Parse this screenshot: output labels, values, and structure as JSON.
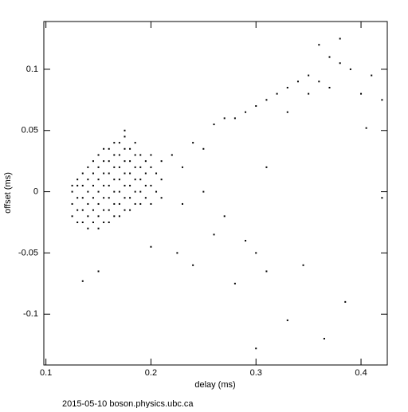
{
  "chart_data": {
    "type": "scatter",
    "xlabel": "delay (ms)",
    "ylabel": "offset (ms)",
    "footer": "2015-05-10  boson.physics.ubc.ca",
    "color": "#000000",
    "xlim": [
      0.098,
      0.425
    ],
    "ylim": [
      -0.1415,
      0.139
    ],
    "xticks": [
      0.1,
      0.2,
      0.3,
      0.4
    ],
    "yticks": [
      -0.1,
      -0.05,
      0,
      0.05,
      0.1
    ],
    "x": [
      0.125,
      0.125,
      0.125,
      0.125,
      0.13,
      0.13,
      0.13,
      0.13,
      0.13,
      0.135,
      0.135,
      0.135,
      0.135,
      0.135,
      0.14,
      0.14,
      0.14,
      0.14,
      0.14,
      0.14,
      0.145,
      0.145,
      0.145,
      0.145,
      0.145,
      0.145,
      0.15,
      0.15,
      0.15,
      0.15,
      0.15,
      0.15,
      0.15,
      0.155,
      0.155,
      0.155,
      0.155,
      0.155,
      0.155,
      0.155,
      0.16,
      0.16,
      0.16,
      0.16,
      0.16,
      0.16,
      0.16,
      0.165,
      0.165,
      0.165,
      0.165,
      0.165,
      0.165,
      0.165,
      0.17,
      0.17,
      0.17,
      0.17,
      0.17,
      0.17,
      0.17,
      0.175,
      0.175,
      0.175,
      0.175,
      0.175,
      0.175,
      0.175,
      0.18,
      0.18,
      0.18,
      0.18,
      0.18,
      0.18,
      0.185,
      0.185,
      0.185,
      0.185,
      0.185,
      0.185,
      0.19,
      0.19,
      0.19,
      0.19,
      0.19,
      0.195,
      0.195,
      0.195,
      0.195,
      0.2,
      0.2,
      0.2,
      0.2,
      0.205,
      0.205,
      0.21,
      0.21,
      0.21,
      0.22,
      0.23,
      0.24,
      0.25,
      0.26,
      0.27,
      0.28,
      0.29,
      0.3,
      0.31,
      0.32,
      0.33,
      0.34,
      0.35,
      0.36,
      0.37,
      0.38,
      0.39,
      0.4,
      0.41,
      0.42,
      0.36,
      0.38,
      0.33,
      0.35,
      0.37,
      0.225,
      0.24,
      0.28,
      0.31,
      0.33,
      0.365,
      0.385,
      0.3,
      0.135,
      0.2,
      0.27,
      0.29,
      0.31,
      0.345,
      0.405,
      0.42,
      0.25,
      0.26,
      0.15,
      0.175,
      0.23,
      0.3
    ],
    "values": [
      -0.02,
      -0.01,
      0,
      0.005,
      -0.025,
      -0.015,
      -0.005,
      0.005,
      0.01,
      -0.025,
      -0.015,
      -0.005,
      0.005,
      0.015,
      -0.03,
      -0.02,
      -0.01,
      0,
      0.01,
      0.02,
      -0.025,
      -0.015,
      -0.005,
      0.005,
      0.015,
      0.025,
      -0.03,
      -0.02,
      -0.01,
      0,
      0.01,
      0.02,
      0.03,
      -0.025,
      -0.015,
      -0.005,
      0.005,
      0.015,
      0.025,
      0.035,
      -0.025,
      -0.015,
      -0.005,
      0.005,
      0.015,
      0.025,
      0.035,
      -0.02,
      -0.01,
      0,
      0.01,
      0.02,
      0.03,
      0.04,
      -0.02,
      -0.01,
      0,
      0.01,
      0.02,
      0.03,
      0.04,
      -0.015,
      -0.005,
      0.005,
      0.015,
      0.025,
      0.035,
      0.045,
      -0.015,
      -0.005,
      0.005,
      0.015,
      0.025,
      0.035,
      -0.01,
      0,
      0.01,
      0.02,
      0.03,
      0.04,
      -0.01,
      0,
      0.01,
      0.02,
      0.03,
      -0.005,
      0.005,
      0.015,
      0.025,
      -0.01,
      0.005,
      0.02,
      0.03,
      0,
      0.015,
      -0.005,
      0.01,
      0.025,
      0.03,
      0.02,
      0.04,
      0.035,
      0.055,
      0.06,
      0.06,
      0.065,
      0.07,
      0.075,
      0.08,
      0.085,
      0.09,
      0.095,
      0.09,
      0.11,
      0.105,
      0.1,
      0.08,
      0.095,
      0.075,
      0.12,
      0.125,
      0.065,
      0.08,
      0.085,
      -0.05,
      -0.06,
      -0.075,
      -0.065,
      -0.105,
      -0.12,
      -0.09,
      -0.128,
      -0.073,
      -0.045,
      -0.02,
      -0.04,
      0.02,
      -0.06,
      0.052,
      -0.005,
      0,
      -0.035,
      -0.065,
      0.05,
      -0.01,
      -0.05
    ]
  }
}
